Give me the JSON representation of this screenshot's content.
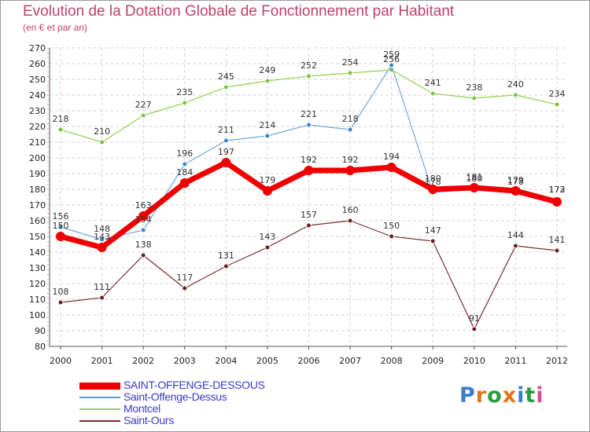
{
  "header": {
    "title": "Evolution de la Dotation Globale de Fonctionnement par Habitant",
    "subtitle": "(en € et par an)"
  },
  "chart_data": {
    "type": "line",
    "title": "Evolution de la Dotation Globale de Fonctionnement par Habitant",
    "subtitle": "(en € et par an)",
    "xlabel": "",
    "ylabel": "",
    "x": [
      "2000",
      "2001",
      "2002",
      "2003",
      "2004",
      "2005",
      "2006",
      "2007",
      "2008",
      "2009",
      "2010",
      "2011",
      "2012"
    ],
    "ylim": [
      80,
      270
    ],
    "yticks": [
      80,
      90,
      100,
      110,
      120,
      130,
      140,
      150,
      160,
      170,
      180,
      190,
      200,
      210,
      220,
      230,
      240,
      250,
      260,
      270
    ],
    "grid": true,
    "legend_position": "bottom-left",
    "series": [
      {
        "name": "SAINT-OFFENGE-DESSOUS",
        "color": "#ee0000",
        "values": [
          150,
          143,
          163,
          184,
          197,
          179,
          192,
          192,
          194,
          180,
          181,
          179,
          172
        ]
      },
      {
        "name": "Saint-Offenge-Dessus",
        "color": "#5b9bd5",
        "values": [
          156,
          148,
          154,
          196,
          211,
          214,
          221,
          218,
          259,
          178,
          180,
          178,
          173
        ]
      },
      {
        "name": "Montcel",
        "color": "#92d050",
        "values": [
          218,
          210,
          227,
          235,
          245,
          249,
          252,
          254,
          256,
          241,
          238,
          240,
          234
        ]
      },
      {
        "name": "Saint-Ours",
        "color": "#7b2c2c",
        "values": [
          108,
          111,
          138,
          117,
          131,
          143,
          157,
          160,
          150,
          147,
          91,
          144,
          141
        ]
      }
    ]
  },
  "logo": {
    "text": "Proxiti",
    "letter_colors": [
      "#3d7ec9",
      "#e8731a",
      "#2f9a3f",
      "#e8731a",
      "#3d7ec9",
      "#2f9a3f",
      "#d84a9a"
    ]
  }
}
